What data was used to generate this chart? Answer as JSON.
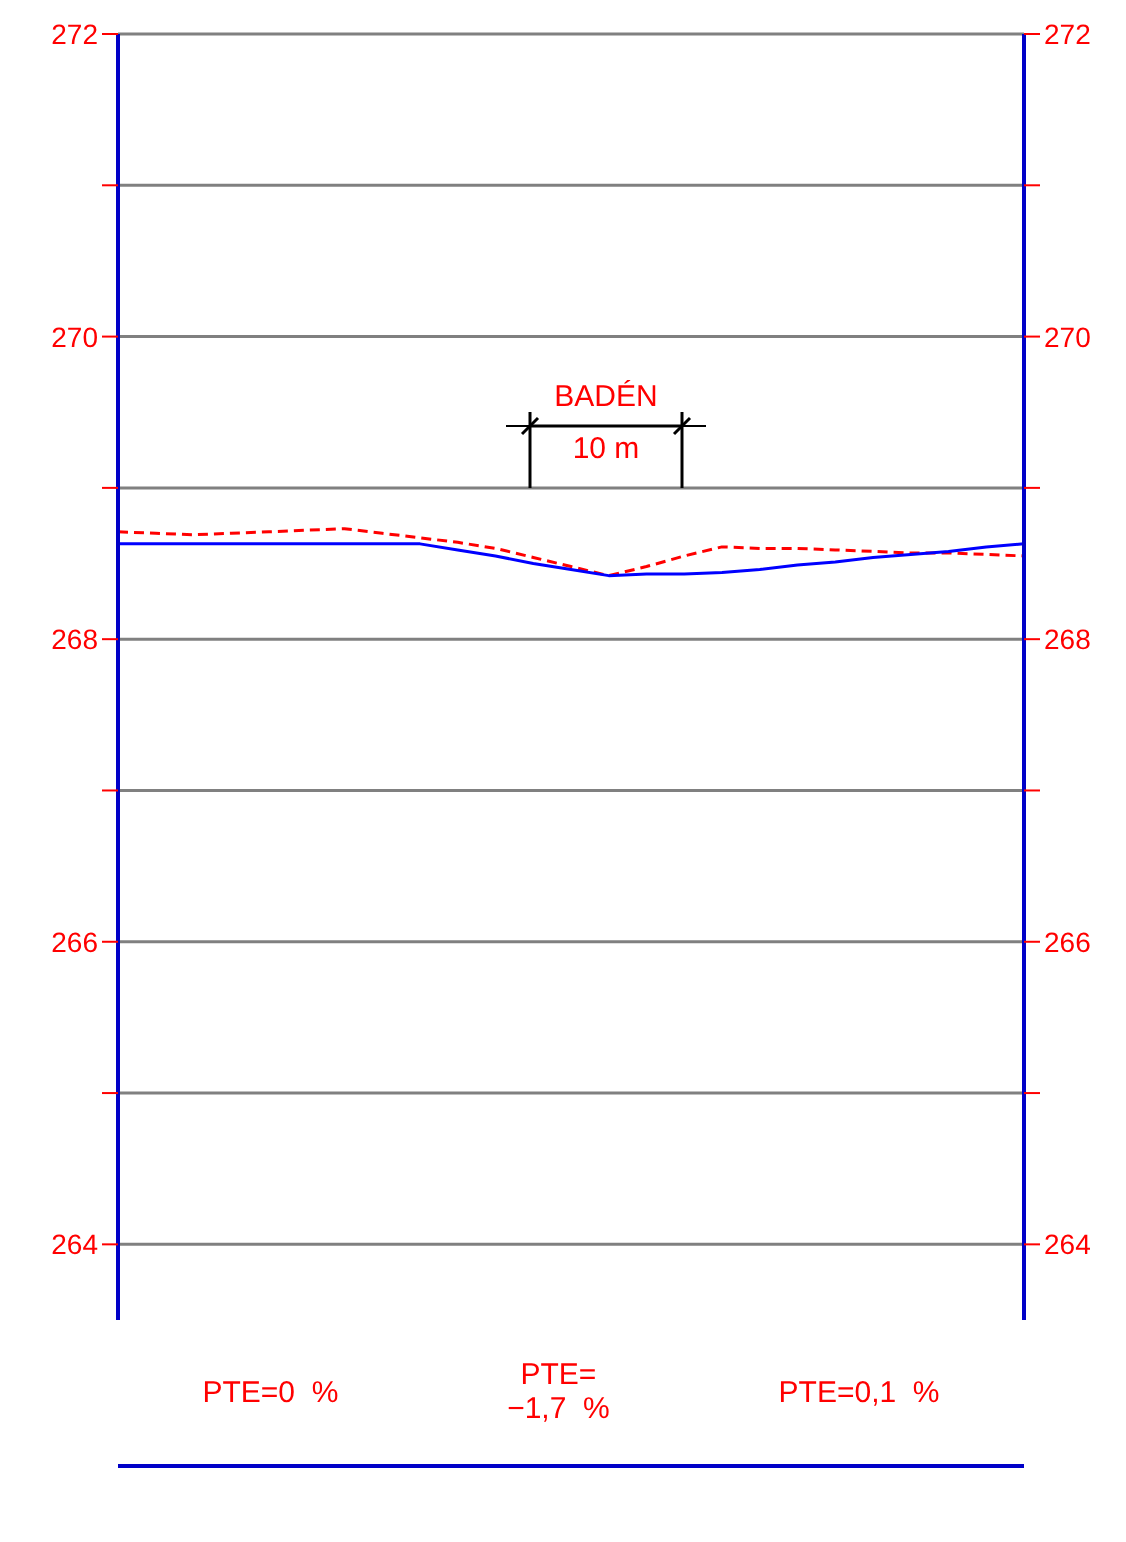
{
  "chart_data": {
    "type": "line",
    "categories": [
      null,
      null,
      null,
      null,
      null,
      null,
      null,
      null,
      null,
      null,
      null,
      null,
      null,
      null,
      null,
      null,
      null,
      null,
      null,
      null,
      null,
      null,
      null,
      null,
      null
    ],
    "series": [
      {
        "color": "#ff0000",
        "line_style": "dashed",
        "values": [
          268.71,
          268.7,
          268.69,
          268.7,
          268.71,
          268.72,
          268.73,
          268.7,
          268.67,
          268.64,
          268.6,
          268.54,
          268.48,
          268.42,
          268.48,
          268.55,
          268.61,
          268.6,
          268.6,
          268.59,
          268.58,
          268.57,
          268.57,
          268.56,
          268.55
        ]
      },
      {
        "color": "#0000ff",
        "line_style": "solid",
        "values": [
          268.63,
          268.63,
          268.63,
          268.63,
          268.63,
          268.63,
          268.63,
          268.63,
          268.63,
          268.59,
          268.55,
          268.5,
          268.46,
          268.42,
          268.43,
          268.43,
          268.44,
          268.46,
          268.49,
          268.51,
          268.54,
          268.56,
          268.58,
          268.61,
          268.63
        ]
      }
    ],
    "ylim": [
      263.5,
      272
    ],
    "yticks": [
      264,
      {
        "value": 265,
        "label": null
      },
      266,
      {
        "value": 267,
        "label": null
      },
      268,
      {
        "value": 269,
        "label": null
      },
      270,
      {
        "value": 271,
        "label": null
      },
      272
    ],
    "y2lim": [
      263.5,
      272
    ],
    "y2ticks": [
      264,
      {
        "value": 265,
        "label": null
      },
      266,
      {
        "value": 267,
        "label": null
      },
      268,
      {
        "value": 269,
        "label": null
      },
      270,
      {
        "value": 271,
        "label": null
      },
      272
    ],
    "tick_labels": "y",
    "grid": "y",
    "marker": "none",
    "annotations": [
      "BADÉN",
      "10 m",
      "PTE=0  %",
      "PTE=\n−1,7  %",
      "PTE=0,1  %"
    ]
  }
}
